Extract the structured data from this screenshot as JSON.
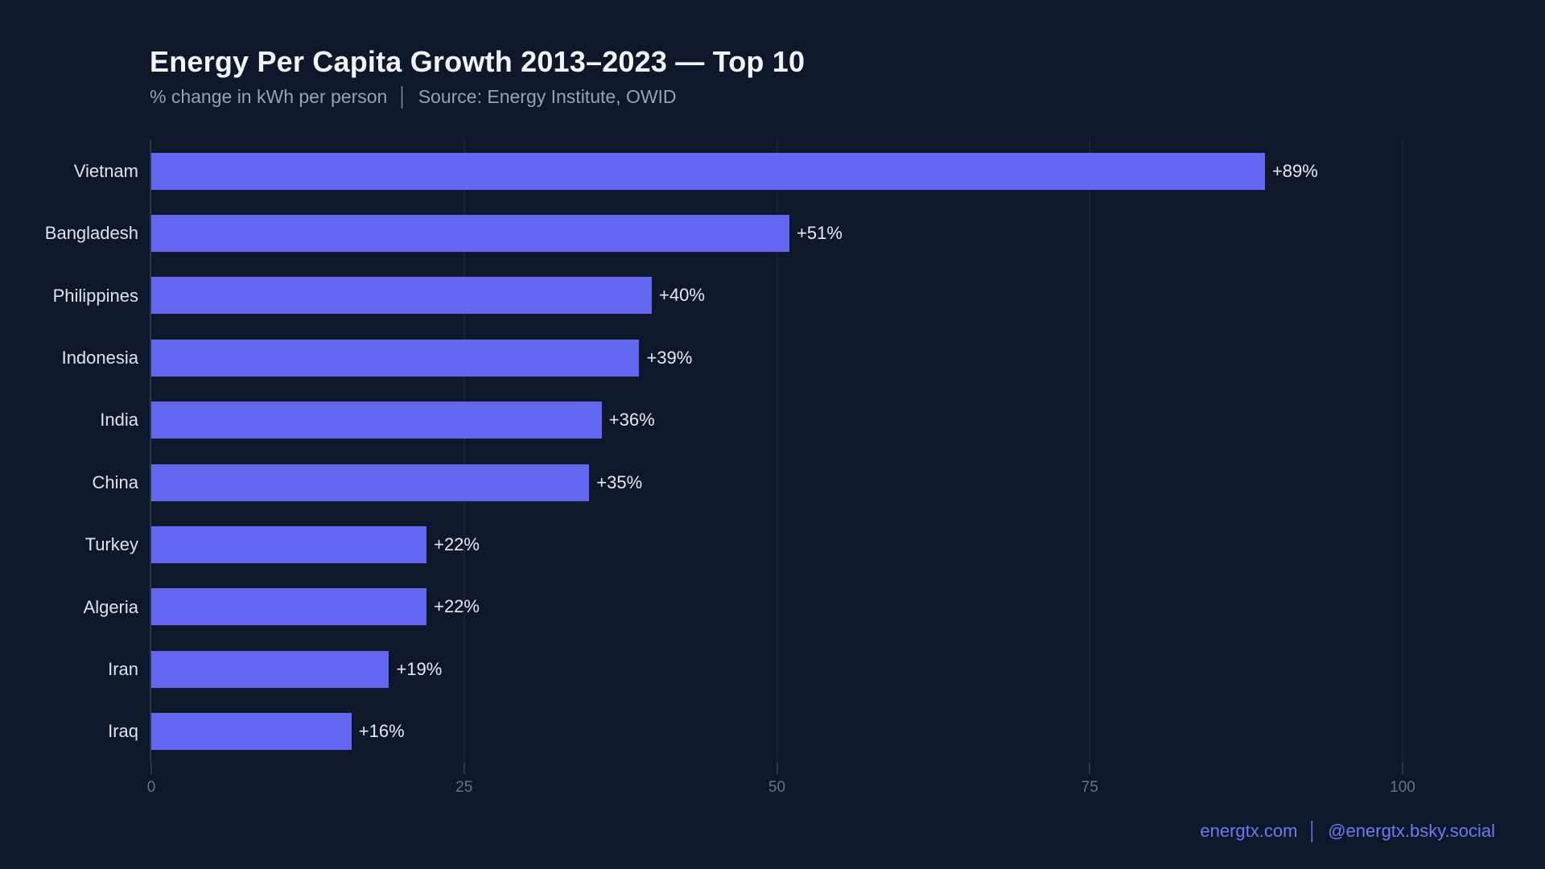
{
  "page": {
    "background_color": "#0f172a"
  },
  "header": {
    "title": "Energy Per Capita Growth 2013–2023 — Top 10",
    "subtitle": {
      "metric": "% change in kWh per person",
      "separator": "│",
      "source": "Source: Energy Institute, OWID"
    }
  },
  "chart_data": {
    "type": "bar",
    "orientation": "horizontal",
    "title": "Energy Per Capita Growth 2013–2023 — Top 10",
    "xlabel": "% change in kWh per person",
    "ylabel": "",
    "xlim": [
      0,
      100
    ],
    "grid": true,
    "legend": "none",
    "categories": [
      "Vietnam",
      "Bangladesh",
      "Philippines",
      "Indonesia",
      "India",
      "China",
      "Turkey",
      "Algeria",
      "Iran",
      "Iraq"
    ],
    "values": [
      89,
      51,
      40,
      39,
      36,
      35,
      22,
      22,
      19,
      16
    ],
    "value_labels": [
      "+89%",
      "+51%",
      "+40%",
      "+39%",
      "+36%",
      "+35%",
      "+22%",
      "+22%",
      "+19%",
      "+16%"
    ],
    "x_ticks": [
      0,
      25,
      50,
      75,
      100
    ],
    "x_tick_labels": [
      "0",
      "25",
      "50",
      "75",
      "100"
    ],
    "bar_color": "#6366f1"
  },
  "footer": {
    "site": "energtx.com",
    "separator": "│",
    "handle": "@energtx.bsky.social",
    "accent_color": "#6d7bf0"
  }
}
